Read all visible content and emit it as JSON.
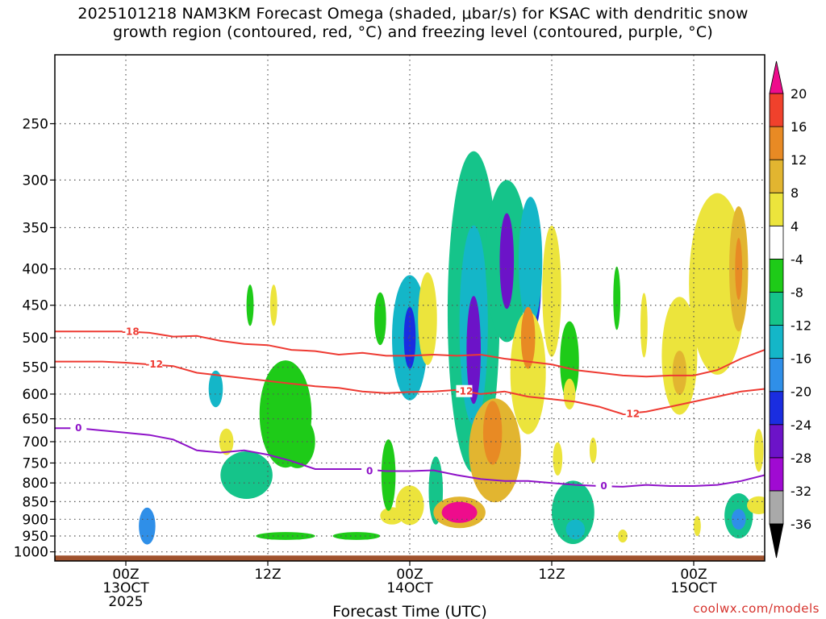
{
  "title_line1": "2025101218 NAM3KM Forecast Omega (shaded, μbar/s) for KSAC with dendritic snow",
  "title_line2": "growth region (contoured, red, °C) and freezing level (contoured, purple, °C)",
  "credit": "coolwx.com/models",
  "colors": {
    "dgz": "#ee3a32",
    "freezing": "#8e12c8",
    "ground": "#a0522d",
    "gridline": "#555555"
  },
  "chart_data": {
    "type": "heatmap",
    "xlabel": "Forecast Time (UTC)",
    "x_range_hours": [
      -6,
      54
    ],
    "x_ticks": [
      {
        "hour": 0,
        "lines": [
          "00Z",
          "13OCT",
          "2025"
        ]
      },
      {
        "hour": 12,
        "lines": [
          "12Z"
        ]
      },
      {
        "hour": 24,
        "lines": [
          "00Z",
          "14OCT"
        ]
      },
      {
        "hour": 36,
        "lines": [
          "12Z"
        ]
      },
      {
        "hour": 48,
        "lines": [
          "00Z",
          "15OCT"
        ]
      }
    ],
    "y_scale": "log-pressure",
    "y_range_hPa": [
      1030,
      200
    ],
    "y_ticks": [
      250,
      300,
      350,
      400,
      450,
      500,
      550,
      600,
      650,
      700,
      750,
      800,
      850,
      900,
      950,
      1000
    ],
    "grid": true,
    "colorbar": {
      "levels": [
        -36,
        -32,
        -28,
        -24,
        -20,
        -16,
        -12,
        -8,
        -4,
        4,
        8,
        12,
        16,
        20
      ],
      "colors": [
        "#000000",
        "#a9a9a9",
        "#a00ad2",
        "#6c13c8",
        "#1a2de0",
        "#2f8fe8",
        "#14b6c8",
        "#15c48a",
        "#1ecb18",
        "#ffffff",
        "#ece43c",
        "#e2b530",
        "#e88a24",
        "#f0412c",
        "#ee0c8c"
      ]
    },
    "contours": [
      {
        "name": "-18",
        "color": "#ee3a32",
        "points": [
          [
            -6,
            490
          ],
          [
            -2,
            490
          ],
          [
            0,
            490
          ],
          [
            2,
            492
          ],
          [
            4,
            498
          ],
          [
            6,
            497
          ],
          [
            8,
            505
          ],
          [
            10,
            510
          ],
          [
            12,
            512
          ],
          [
            14,
            520
          ],
          [
            16,
            522
          ],
          [
            18,
            528
          ],
          [
            20,
            525
          ],
          [
            22,
            530
          ],
          [
            24,
            530
          ],
          [
            26,
            528
          ],
          [
            28,
            530
          ],
          [
            30,
            528
          ],
          [
            32,
            535
          ],
          [
            34,
            540
          ],
          [
            36,
            545
          ],
          [
            38,
            555
          ],
          [
            40,
            560
          ],
          [
            42,
            565
          ],
          [
            44,
            567
          ],
          [
            46,
            565
          ],
          [
            48,
            565
          ],
          [
            50,
            555
          ],
          [
            52,
            535
          ],
          [
            54,
            520
          ]
        ],
        "labels": [
          [
            0.4,
            490
          ]
        ]
      },
      {
        "name": "-12",
        "color": "#ee3a32",
        "points": [
          [
            -6,
            540
          ],
          [
            -2,
            540
          ],
          [
            0,
            542
          ],
          [
            2,
            545
          ],
          [
            4,
            548
          ],
          [
            6,
            560
          ],
          [
            8,
            565
          ],
          [
            10,
            570
          ],
          [
            12,
            575
          ],
          [
            14,
            580
          ],
          [
            16,
            585
          ],
          [
            18,
            588
          ],
          [
            20,
            595
          ],
          [
            22,
            598
          ],
          [
            24,
            596
          ],
          [
            26,
            595
          ],
          [
            28,
            592
          ],
          [
            30,
            600
          ],
          [
            32,
            595
          ],
          [
            34,
            605
          ],
          [
            36,
            610
          ],
          [
            38,
            615
          ],
          [
            40,
            625
          ],
          [
            42,
            640
          ],
          [
            44,
            635
          ],
          [
            46,
            625
          ],
          [
            48,
            615
          ],
          [
            50,
            605
          ],
          [
            52,
            595
          ],
          [
            54,
            590
          ]
        ],
        "labels": [
          [
            2.4,
            545
          ],
          [
            28.6,
            595
          ],
          [
            42.7,
            640
          ]
        ]
      },
      {
        "name": "0",
        "color": "#8e12c8",
        "points": [
          [
            -6,
            670
          ],
          [
            -4,
            670
          ],
          [
            -2,
            675
          ],
          [
            0,
            680
          ],
          [
            2,
            685
          ],
          [
            4,
            695
          ],
          [
            6,
            720
          ],
          [
            8,
            725
          ],
          [
            10,
            720
          ],
          [
            12,
            730
          ],
          [
            14,
            745
          ],
          [
            16,
            765
          ],
          [
            18,
            765
          ],
          [
            20,
            765
          ],
          [
            22,
            770
          ],
          [
            24,
            770
          ],
          [
            26,
            768
          ],
          [
            28,
            780
          ],
          [
            30,
            790
          ],
          [
            32,
            795
          ],
          [
            34,
            795
          ],
          [
            36,
            800
          ],
          [
            38,
            805
          ],
          [
            40,
            808
          ],
          [
            42,
            810
          ],
          [
            44,
            805
          ],
          [
            46,
            808
          ],
          [
            48,
            808
          ],
          [
            50,
            805
          ],
          [
            52,
            795
          ],
          [
            54,
            780
          ]
        ],
        "labels": [
          [
            -4,
            670
          ],
          [
            20.6,
            770
          ],
          [
            40.4,
            808
          ]
        ]
      }
    ],
    "omega_cells": [
      {
        "t": 1.8,
        "p": 920,
        "dt": 0.7,
        "dp": 55,
        "v": -16
      },
      {
        "t": 7.6,
        "p": 590,
        "dt": 0.6,
        "dp": 35,
        "v": -14
      },
      {
        "t": 8.5,
        "p": 700,
        "dt": 0.6,
        "dp": 30,
        "v": 8
      },
      {
        "t": 13.5,
        "p": 640,
        "dt": 2.2,
        "dp": 110,
        "v": -7
      },
      {
        "t": 10.2,
        "p": 780,
        "dt": 2.2,
        "dp": 60,
        "v": -10
      },
      {
        "t": 14.5,
        "p": 700,
        "dt": 1.5,
        "dp": 60,
        "v": -6
      },
      {
        "t": 10.5,
        "p": 450,
        "dt": 0.3,
        "dp": 30,
        "v": -6
      },
      {
        "t": 12.5,
        "p": 450,
        "dt": 0.3,
        "dp": 30,
        "v": 5
      },
      {
        "t": 13.5,
        "p": 950,
        "dt": 2.5,
        "dp": 12,
        "v": -5
      },
      {
        "t": 19.5,
        "p": 950,
        "dt": 2.0,
        "dp": 12,
        "v": -5
      },
      {
        "t": 22.5,
        "p": 890,
        "dt": 1.0,
        "dp": 25,
        "v": 5
      },
      {
        "t": 22.2,
        "p": 780,
        "dt": 0.6,
        "dp": 90,
        "v": -5
      },
      {
        "t": 21.5,
        "p": 470,
        "dt": 0.5,
        "dp": 40,
        "v": -6
      },
      {
        "t": 24.0,
        "p": 500,
        "dt": 1.5,
        "dp": 100,
        "v": -12
      },
      {
        "t": 24.0,
        "p": 500,
        "dt": 0.5,
        "dp": 50,
        "v": -22
      },
      {
        "t": 25.5,
        "p": 470,
        "dt": 0.8,
        "dp": 70,
        "v": 8
      },
      {
        "t": 24.0,
        "p": 860,
        "dt": 1.2,
        "dp": 55,
        "v": 6
      },
      {
        "t": 26.2,
        "p": 820,
        "dt": 0.6,
        "dp": 90,
        "v": -10
      },
      {
        "t": 28.2,
        "p": 880,
        "dt": 2.2,
        "dp": 45,
        "v": 10
      },
      {
        "t": 28.2,
        "p": 880,
        "dt": 1.5,
        "dp": 30,
        "v": 22
      },
      {
        "t": 29.4,
        "p": 460,
        "dt": 2.2,
        "dp": 220,
        "v": -8
      },
      {
        "t": 29.4,
        "p": 480,
        "dt": 1.2,
        "dp": 150,
        "v": -14
      },
      {
        "t": 29.4,
        "p": 520,
        "dt": 0.6,
        "dp": 90,
        "v": -26
      },
      {
        "t": 31.2,
        "p": 720,
        "dt": 2.2,
        "dp": 120,
        "v": 9
      },
      {
        "t": 31.0,
        "p": 680,
        "dt": 0.8,
        "dp": 70,
        "v": 14
      },
      {
        "t": 32.2,
        "p": 390,
        "dt": 1.8,
        "dp": 100,
        "v": -10
      },
      {
        "t": 32.2,
        "p": 390,
        "dt": 0.6,
        "dp": 60,
        "v": -24
      },
      {
        "t": 34.5,
        "p": 420,
        "dt": 0.6,
        "dp": 60,
        "v": -20
      },
      {
        "t": 34.2,
        "p": 390,
        "dt": 1.0,
        "dp": 80,
        "v": -12
      },
      {
        "t": 34.0,
        "p": 560,
        "dt": 1.5,
        "dp": 110,
        "v": 8
      },
      {
        "t": 34.0,
        "p": 500,
        "dt": 0.6,
        "dp": 50,
        "v": 14
      },
      {
        "t": 36.0,
        "p": 430,
        "dt": 0.8,
        "dp": 90,
        "v": 6
      },
      {
        "t": 37.5,
        "p": 540,
        "dt": 0.8,
        "dp": 70,
        "v": -7
      },
      {
        "t": 37.5,
        "p": 600,
        "dt": 0.5,
        "dp": 30,
        "v": 5
      },
      {
        "t": 36.5,
        "p": 740,
        "dt": 0.4,
        "dp": 40,
        "v": 5
      },
      {
        "t": 37.8,
        "p": 880,
        "dt": 1.8,
        "dp": 90,
        "v": -8
      },
      {
        "t": 38.0,
        "p": 930,
        "dt": 0.8,
        "dp": 30,
        "v": -14
      },
      {
        "t": 39.5,
        "p": 720,
        "dt": 0.3,
        "dp": 30,
        "v": 5
      },
      {
        "t": 41.5,
        "p": 440,
        "dt": 0.3,
        "dp": 45,
        "v": -6
      },
      {
        "t": 43.8,
        "p": 480,
        "dt": 0.3,
        "dp": 50,
        "v": 5
      },
      {
        "t": 42.0,
        "p": 950,
        "dt": 0.4,
        "dp": 20,
        "v": 5
      },
      {
        "t": 46.8,
        "p": 530,
        "dt": 1.5,
        "dp": 100,
        "v": 6
      },
      {
        "t": 46.8,
        "p": 560,
        "dt": 0.6,
        "dp": 40,
        "v": 10
      },
      {
        "t": 50.0,
        "p": 420,
        "dt": 2.4,
        "dp": 120,
        "v": 6
      },
      {
        "t": 51.8,
        "p": 400,
        "dt": 0.8,
        "dp": 80,
        "v": 10
      },
      {
        "t": 51.8,
        "p": 400,
        "dt": 0.3,
        "dp": 40,
        "v": 14
      },
      {
        "t": 48.3,
        "p": 920,
        "dt": 0.3,
        "dp": 30,
        "v": 5
      },
      {
        "t": 51.8,
        "p": 890,
        "dt": 1.2,
        "dp": 65,
        "v": -10
      },
      {
        "t": 51.8,
        "p": 900,
        "dt": 0.6,
        "dp": 30,
        "v": -16
      },
      {
        "t": 53.5,
        "p": 860,
        "dt": 1.0,
        "dp": 25,
        "v": 5
      },
      {
        "t": 53.5,
        "p": 720,
        "dt": 0.4,
        "dp": 50,
        "v": 6
      }
    ]
  }
}
